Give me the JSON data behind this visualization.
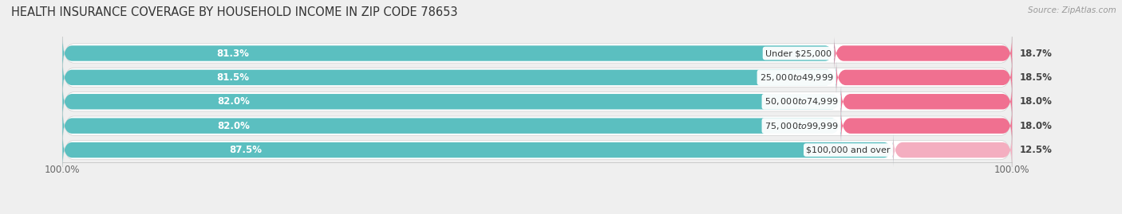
{
  "title": "HEALTH INSURANCE COVERAGE BY HOUSEHOLD INCOME IN ZIP CODE 78653",
  "source": "Source: ZipAtlas.com",
  "categories": [
    "Under $25,000",
    "$25,000 to $49,999",
    "$50,000 to $74,999",
    "$75,000 to $99,999",
    "$100,000 and over"
  ],
  "with_coverage": [
    81.3,
    81.5,
    82.0,
    82.0,
    87.5
  ],
  "without_coverage": [
    18.7,
    18.5,
    18.0,
    18.0,
    12.5
  ],
  "color_with": "#5bbfc0",
  "color_with_dark": "#3a9ea0",
  "color_without": "#f07090",
  "color_without_last": "#f4aec0",
  "bg_color": "#efefef",
  "title_fontsize": 10.5,
  "label_fontsize": 8.5,
  "tick_fontsize": 8.5,
  "legend_fontsize": 8.5,
  "source_fontsize": 7.5
}
